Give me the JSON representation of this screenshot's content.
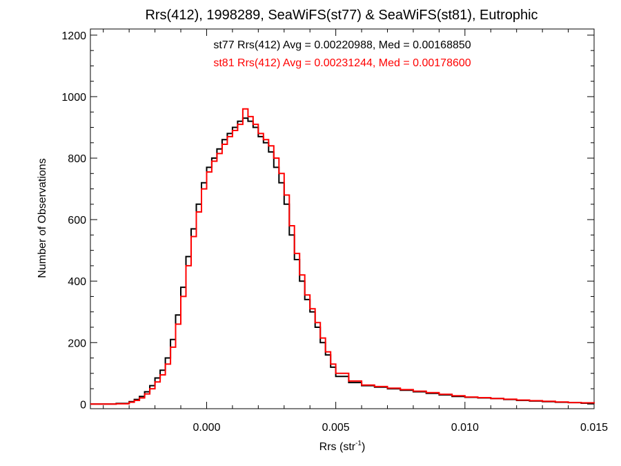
{
  "chart_data": {
    "type": "line",
    "step": true,
    "title": "Rrs(412), 1998289, SeaWiFS(st77) & SeaWiFS(st81), Eutrophic",
    "xlabel": "Rrs (str",
    "xlabel_sup": "-1",
    "xlabel_close": ")",
    "ylabel": "Number of Observations",
    "xlim": [
      -0.0045,
      0.015
    ],
    "ylim": [
      -15,
      1220
    ],
    "xticks": [
      0.0,
      0.005,
      0.01,
      0.015
    ],
    "xtick_labels": [
      "0.000",
      "0.005",
      "0.010",
      "0.015"
    ],
    "yticks": [
      0,
      200,
      400,
      600,
      800,
      1000,
      1200
    ],
    "ytick_labels": [
      "0",
      "200",
      "400",
      "600",
      "800",
      "1000",
      "1200"
    ],
    "grid": false,
    "annotations": [
      {
        "text": "st77 Rrs(412) Avg = 0.00220988, Med = 0.00168850",
        "color": "#000000"
      },
      {
        "text": "st81 Rrs(412) Avg = 0.00231244, Med = 0.00178600",
        "color": "#ff0000"
      }
    ],
    "series": [
      {
        "color": "#000000",
        "x": [
          -0.0045,
          -0.004,
          -0.0035,
          -0.003,
          -0.0028,
          -0.0026,
          -0.0024,
          -0.0022,
          -0.002,
          -0.0018,
          -0.0016,
          -0.0014,
          -0.0012,
          -0.001,
          -0.0008,
          -0.0006,
          -0.0004,
          -0.0002,
          0.0,
          0.0002,
          0.0004,
          0.0006,
          0.0008,
          0.001,
          0.0012,
          0.0014,
          0.0016,
          0.0018,
          0.002,
          0.0022,
          0.0024,
          0.0026,
          0.0028,
          0.003,
          0.0032,
          0.0034,
          0.0036,
          0.0038,
          0.004,
          0.0042,
          0.0044,
          0.0046,
          0.0048,
          0.005,
          0.0055,
          0.006,
          0.0065,
          0.007,
          0.0075,
          0.008,
          0.0085,
          0.009,
          0.0095,
          0.01,
          0.0105,
          0.011,
          0.0115,
          0.012,
          0.0125,
          0.013,
          0.0135,
          0.014,
          0.0145,
          0.015
        ],
        "values": [
          0,
          0,
          2,
          8,
          15,
          25,
          40,
          60,
          85,
          110,
          150,
          210,
          290,
          380,
          480,
          570,
          650,
          720,
          770,
          800,
          830,
          860,
          880,
          900,
          920,
          930,
          920,
          900,
          870,
          850,
          820,
          770,
          720,
          650,
          550,
          470,
          400,
          340,
          300,
          250,
          200,
          160,
          120,
          90,
          70,
          60,
          55,
          50,
          45,
          40,
          35,
          30,
          25,
          22,
          20,
          18,
          15,
          12,
          10,
          8,
          6,
          5,
          3,
          2
        ]
      },
      {
        "color": "#ff0000",
        "x": [
          -0.0045,
          -0.004,
          -0.0035,
          -0.003,
          -0.0028,
          -0.0026,
          -0.0024,
          -0.0022,
          -0.002,
          -0.0018,
          -0.0016,
          -0.0014,
          -0.0012,
          -0.001,
          -0.0008,
          -0.0006,
          -0.0004,
          -0.0002,
          0.0,
          0.0002,
          0.0004,
          0.0006,
          0.0008,
          0.001,
          0.0012,
          0.0014,
          0.0016,
          0.0018,
          0.002,
          0.0022,
          0.0024,
          0.0026,
          0.0028,
          0.003,
          0.0032,
          0.0034,
          0.0036,
          0.0038,
          0.004,
          0.0042,
          0.0044,
          0.0046,
          0.0048,
          0.005,
          0.0055,
          0.006,
          0.0065,
          0.007,
          0.0075,
          0.008,
          0.0085,
          0.009,
          0.0095,
          0.01,
          0.0105,
          0.011,
          0.0115,
          0.012,
          0.0125,
          0.013,
          0.0135,
          0.014,
          0.0145,
          0.015
        ],
        "values": [
          0,
          0,
          1,
          6,
          12,
          20,
          33,
          50,
          72,
          95,
          130,
          185,
          260,
          350,
          450,
          545,
          625,
          700,
          755,
          790,
          815,
          845,
          870,
          890,
          910,
          960,
          935,
          910,
          880,
          860,
          840,
          800,
          750,
          680,
          580,
          490,
          420,
          355,
          310,
          265,
          215,
          170,
          130,
          100,
          75,
          62,
          57,
          52,
          47,
          42,
          37,
          32,
          27,
          23,
          21,
          18,
          16,
          13,
          11,
          9,
          7,
          5,
          4,
          2
        ]
      }
    ]
  }
}
